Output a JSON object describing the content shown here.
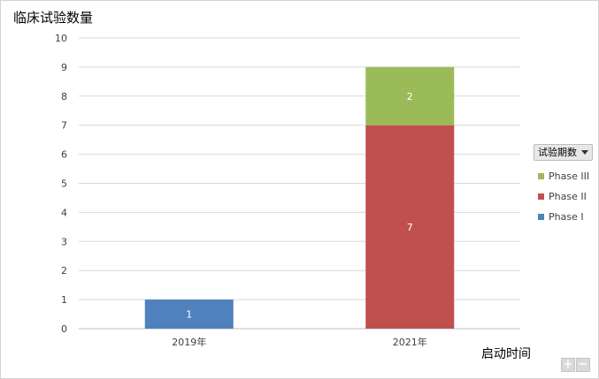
{
  "chart_data": {
    "type": "bar",
    "stacked": true,
    "ylabel": "临床试验数量",
    "xlabel": "启动时间",
    "categories": [
      "2019年",
      "2021年"
    ],
    "ylim": [
      0,
      10
    ],
    "yticks": [
      0,
      1,
      2,
      3,
      4,
      5,
      6,
      7,
      8,
      9,
      10
    ],
    "grid": true,
    "legend_placement": "right",
    "legend_title": "试验期数",
    "series": [
      {
        "name": "Phase I",
        "values": [
          1,
          0
        ],
        "color": "#4f81bd"
      },
      {
        "name": "Phase II",
        "values": [
          0,
          7
        ],
        "color": "#c0504d"
      },
      {
        "name": "Phase III",
        "values": [
          0,
          2
        ],
        "color": "#9bbb59"
      }
    ]
  },
  "controls": {
    "zoom_in": "+",
    "zoom_out": "−"
  }
}
